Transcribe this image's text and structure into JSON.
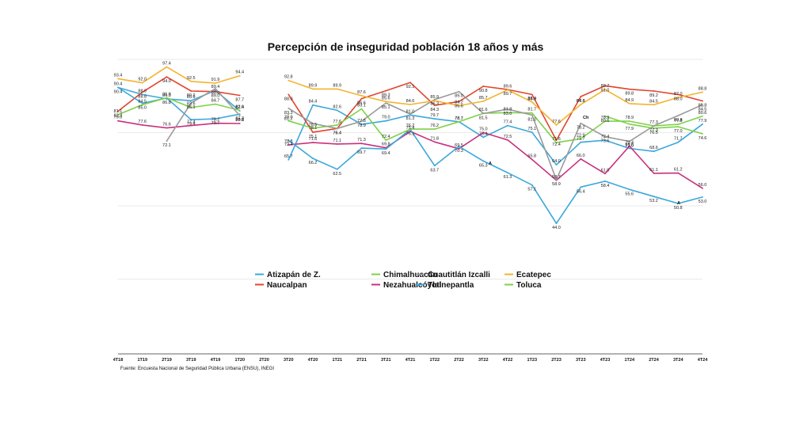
{
  "chart_data": {
    "type": "line",
    "title": "Percepción de inseguridad población 18 años y más",
    "source": "Fuente: Encuesta Nacional de Seguridad Pública Urbana (ENSU), INEGI",
    "categories": [
      "4T18",
      "1T19",
      "2T19",
      "3T19",
      "4T19",
      "1T20",
      "2T20",
      "3T20",
      "4T20",
      "1T21",
      "2T21",
      "3T21",
      "4T21",
      "1T22",
      "2T22",
      "3T22",
      "4T22",
      "1T23",
      "2T23",
      "3T23",
      "4T23",
      "1T24",
      "2T24",
      "3T24",
      "4T24"
    ],
    "ylim": [
      0,
      100
    ],
    "series": [
      {
        "name": "Atizapán de Z.",
        "color": "#3aa8dc",
        "values": [
          90.4,
          88.0,
          86.5,
          85.9,
          89.4,
          82.4,
          null,
          65.7,
          84.4,
          82.6,
          77.8,
          79.0,
          81.0,
          79.7,
          78.7,
          73.4,
          77.4,
          75.1,
          64.0,
          71.7,
          72.4,
          69.6,
          68.6,
          71.7,
          77.9
        ]
      },
      {
        "name": "Naucalpan",
        "color": "#e0452e",
        "values": [
          82.3,
          88.8,
          94.0,
          89.2,
          89.0,
          87.7,
          null,
          88.0,
          75.1,
          76.4,
          86.6,
          89.3,
          92.1,
          84.3,
          85.6,
          90.8,
          89.7,
          88.0,
          72.4,
          87.3,
          91.0,
          89.8,
          89.2,
          88.0,
          85.8
        ]
      },
      {
        "name": "Nezahualcóyotl",
        "color": "#c8317e",
        "values": [
          79.0,
          77.6,
          76.6,
          77.4,
          78.2,
          78.1,
          null,
          70.8,
          71.6,
          71.1,
          71.3,
          69.8,
          75.4,
          71.8,
          69.5,
          75.0,
          72.5,
          65.8,
          58.7,
          66.0,
          61.0,
          70.4,
          61.1,
          61.2,
          56.0
        ]
      },
      {
        "name": "Tlalnepantla",
        "color": "#3aa8dc",
        "values": [
          90.4,
          85.0,
          86.8,
          79.4,
          79.7,
          81.3,
          null,
          72.4,
          66.2,
          62.5,
          69.7,
          69.4,
          76.1,
          63.7,
          70.3,
          65.3,
          61.3,
          57.1,
          44.0,
          56.4,
          58.4,
          55.6,
          53.2,
          50.8,
          53.0
        ]
      },
      {
        "name": "Chimalhuacán",
        "color": "#7fd14a",
        "values": [
          81.1,
          84.5,
          86.9,
          83.6,
          84.7,
          82.6,
          null,
          79.0,
          76.5,
          77.6,
          83.1,
          72.4,
          76.2,
          76.2,
          78.7,
          81.6,
          81.8,
          81.7,
          71.6,
          72.9,
          78.9,
          78.9,
          77.3,
          77.8,
          80.6
        ]
      },
      {
        "name": "Cuautitlán Izcalli",
        "color": "#9a9a9a",
        "values": [
          null,
          null,
          72.1,
          85.1,
          90.0,
          80.8,
          null,
          83.3,
          78.1,
          76.4,
          78.9,
          85.1,
          81.3,
          86.3,
          89.0,
          81.5,
          83.0,
          81.0,
          58.9,
          78.2,
          73.6,
          72.0,
          77.3,
          80.8,
          84.5
        ]
      },
      {
        "name": "Ecatepec",
        "color": "#f3b42f",
        "values": [
          93.4,
          92.0,
          97.4,
          92.5,
          91.9,
          94.4,
          null,
          92.8,
          89.9,
          89.9,
          87.6,
          85.6,
          84.6,
          85.9,
          84.2,
          85.7,
          89.6,
          85.4,
          77.6,
          84.6,
          89.7,
          84.9,
          84.5,
          87.0,
          88.8
        ]
      },
      {
        "name": "Toluca",
        "color": "#7fd14a",
        "values": [
          null,
          null,
          null,
          null,
          null,
          null,
          null,
          81.2,
          null,
          null,
          null,
          null,
          null,
          null,
          null,
          null,
          null,
          null,
          null,
          null,
          80.6,
          77.9,
          76.5,
          77.0,
          74.6
        ]
      }
    ],
    "legend": {
      "placement": "bottom-center",
      "items": [
        {
          "name": "Atizapán de Z.",
          "color": "#3aa8dc"
        },
        {
          "name": "Chimalhuacán",
          "color": "#7fd14a"
        },
        {
          "name": "Cuautitlán Izcalli",
          "color": "#9a9a9a"
        },
        {
          "name": "Ecatepec",
          "color": "#f3b42f"
        },
        {
          "name": "Naucalpan",
          "color": "#e0452e"
        },
        {
          "name": "Nezahualcóyotl",
          "color": "#c8317e"
        },
        {
          "name": "Tlalnepantla",
          "color": "#3aa8dc"
        },
        {
          "name": "Toluca",
          "color": "#7fd14a"
        }
      ]
    },
    "grid": true,
    "annotations": [
      "Ch",
      "A",
      "A"
    ]
  }
}
